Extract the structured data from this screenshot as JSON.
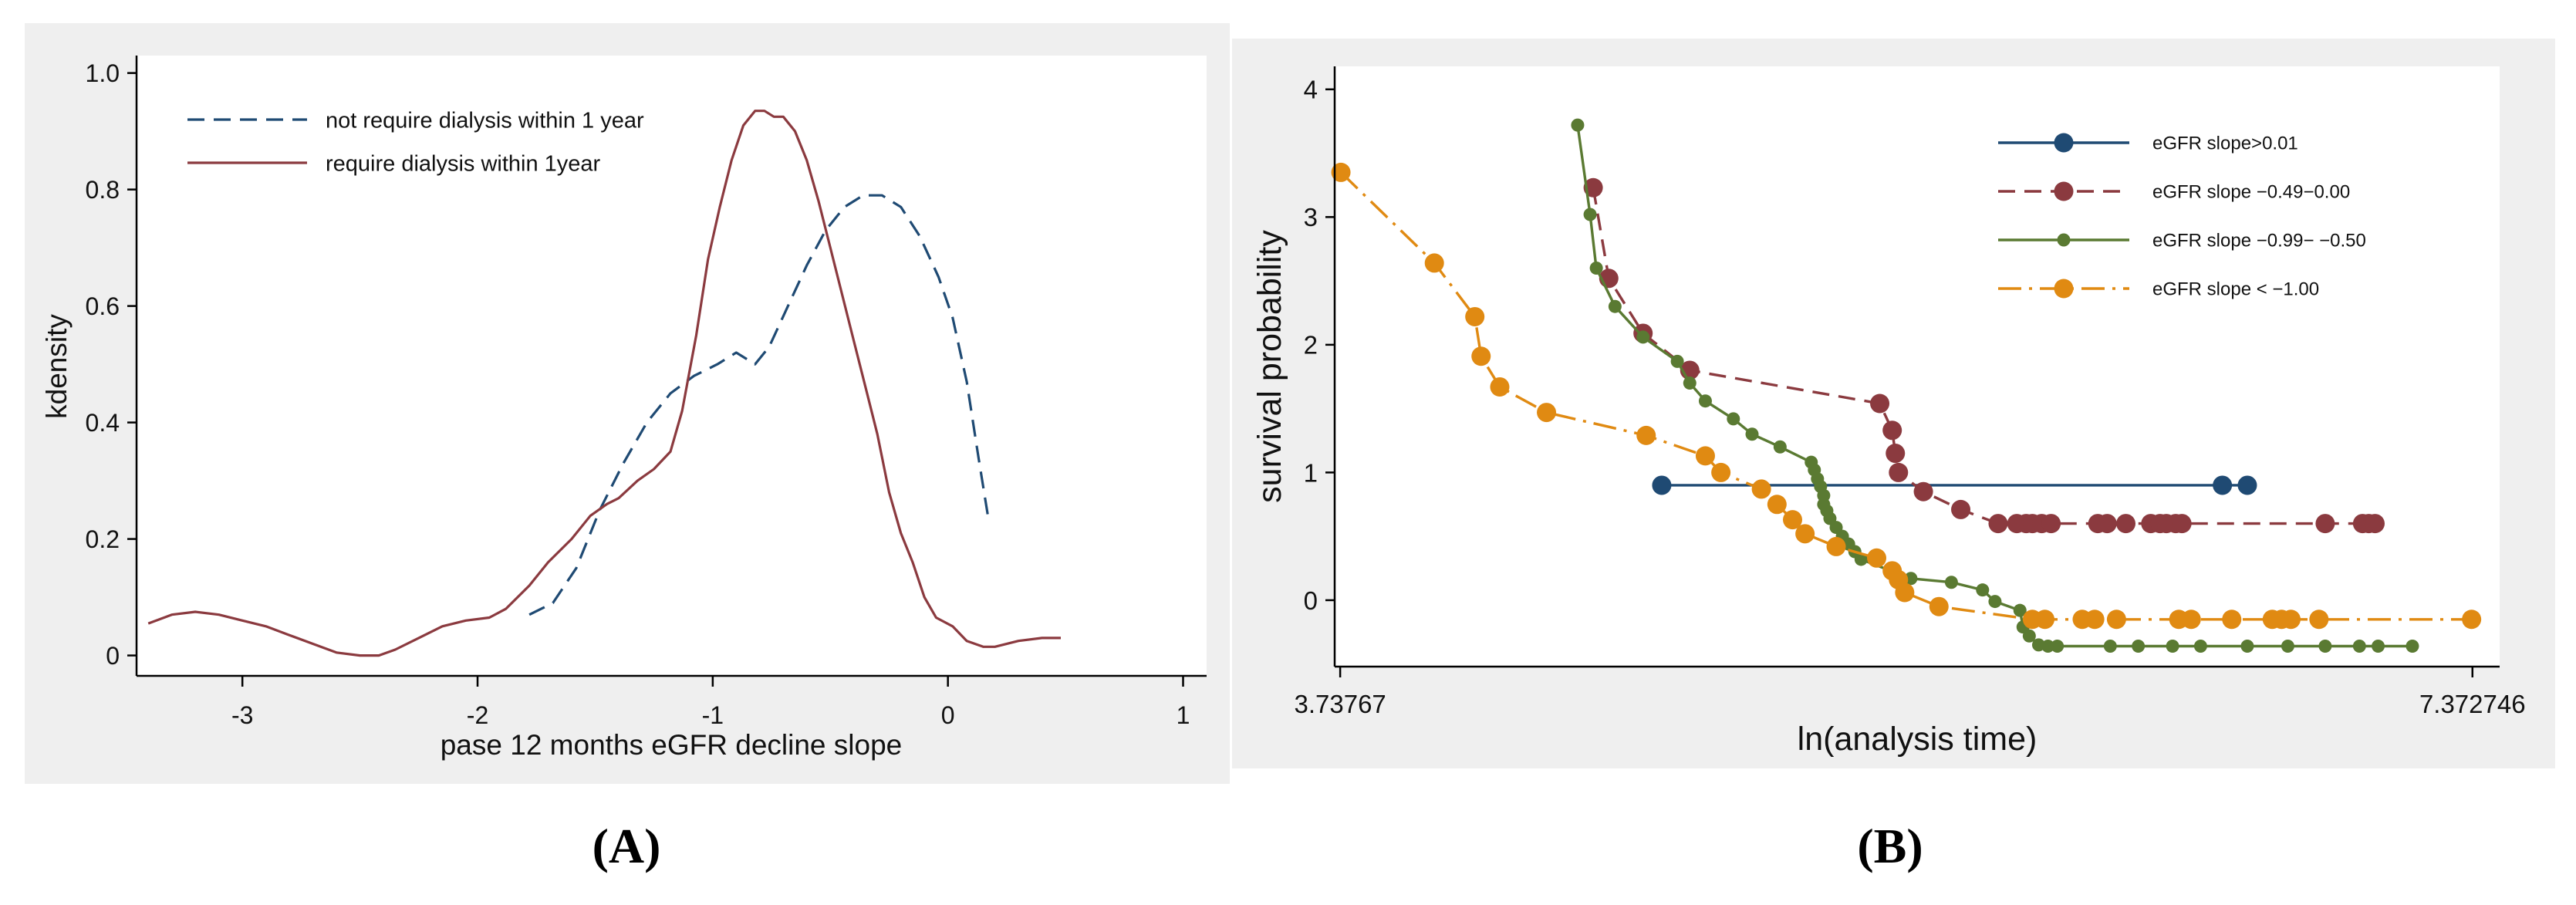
{
  "colors": {
    "navy": "#1f4a73",
    "maroon": "#8b3a3f",
    "green": "#5a7a32",
    "orange": "#e08a12",
    "panel_bg": "#efefef"
  },
  "chart_data": [
    {
      "id": "A",
      "panel_label": "(A)",
      "type": "line",
      "title": "",
      "xlabel": "pase 12 months eGFR decline slope",
      "ylabel": "kdensity",
      "xlim": [
        -3.45,
        1.1
      ],
      "ylim": [
        -0.035,
        1.03
      ],
      "x_ticks": [
        -3,
        -2,
        -1,
        0,
        1
      ],
      "x_tick_labels": [
        "-3",
        "-2",
        "-1",
        "0",
        "1"
      ],
      "y_ticks": [
        0,
        0.2,
        0.4,
        0.6,
        0.8,
        1.0
      ],
      "y_tick_labels": [
        "0",
        "0.2",
        "0.4",
        "0.6",
        "0.8",
        "1.0"
      ],
      "legend_position": "top-left",
      "series": [
        {
          "name": "not require dialysis within 1 year",
          "color": "#1f4a73",
          "dash": "dashed",
          "points": [
            [
              -1.78,
              0.07
            ],
            [
              -1.68,
              0.09
            ],
            [
              -1.58,
              0.15
            ],
            [
              -1.48,
              0.25
            ],
            [
              -1.38,
              0.33
            ],
            [
              -1.28,
              0.4
            ],
            [
              -1.18,
              0.45
            ],
            [
              -1.08,
              0.48
            ],
            [
              -0.98,
              0.5
            ],
            [
              -0.9,
              0.52
            ],
            [
              -0.82,
              0.5
            ],
            [
              -0.76,
              0.53
            ],
            [
              -0.68,
              0.6
            ],
            [
              -0.6,
              0.67
            ],
            [
              -0.52,
              0.73
            ],
            [
              -0.44,
              0.77
            ],
            [
              -0.36,
              0.79
            ],
            [
              -0.28,
              0.79
            ],
            [
              -0.2,
              0.77
            ],
            [
              -0.12,
              0.72
            ],
            [
              -0.04,
              0.65
            ],
            [
              0.02,
              0.58
            ],
            [
              0.08,
              0.47
            ],
            [
              0.13,
              0.34
            ],
            [
              0.17,
              0.24
            ]
          ]
        },
        {
          "name": "require dialysis within 1year",
          "color": "#8b3a3f",
          "dash": "solid",
          "points": [
            [
              -3.4,
              0.055
            ],
            [
              -3.3,
              0.07
            ],
            [
              -3.2,
              0.075
            ],
            [
              -3.1,
              0.07
            ],
            [
              -3.0,
              0.06
            ],
            [
              -2.9,
              0.05
            ],
            [
              -2.8,
              0.035
            ],
            [
              -2.7,
              0.02
            ],
            [
              -2.6,
              0.005
            ],
            [
              -2.5,
              0.0
            ],
            [
              -2.42,
              0.0
            ],
            [
              -2.35,
              0.01
            ],
            [
              -2.25,
              0.03
            ],
            [
              -2.15,
              0.05
            ],
            [
              -2.05,
              0.06
            ],
            [
              -1.95,
              0.065
            ],
            [
              -1.88,
              0.08
            ],
            [
              -1.78,
              0.12
            ],
            [
              -1.7,
              0.16
            ],
            [
              -1.6,
              0.2
            ],
            [
              -1.52,
              0.24
            ],
            [
              -1.45,
              0.26
            ],
            [
              -1.4,
              0.27
            ],
            [
              -1.32,
              0.3
            ],
            [
              -1.25,
              0.32
            ],
            [
              -1.18,
              0.35
            ],
            [
              -1.13,
              0.42
            ],
            [
              -1.07,
              0.55
            ],
            [
              -1.02,
              0.68
            ],
            [
              -0.97,
              0.77
            ],
            [
              -0.92,
              0.85
            ],
            [
              -0.87,
              0.91
            ],
            [
              -0.82,
              0.935
            ],
            [
              -0.78,
              0.935
            ],
            [
              -0.74,
              0.925
            ],
            [
              -0.7,
              0.925
            ],
            [
              -0.65,
              0.9
            ],
            [
              -0.6,
              0.85
            ],
            [
              -0.55,
              0.78
            ],
            [
              -0.5,
              0.7
            ],
            [
              -0.45,
              0.62
            ],
            [
              -0.4,
              0.54
            ],
            [
              -0.35,
              0.46
            ],
            [
              -0.3,
              0.38
            ],
            [
              -0.25,
              0.28
            ],
            [
              -0.2,
              0.21
            ],
            [
              -0.15,
              0.16
            ],
            [
              -0.1,
              0.1
            ],
            [
              -0.05,
              0.065
            ],
            [
              0.02,
              0.05
            ],
            [
              0.08,
              0.025
            ],
            [
              0.15,
              0.015
            ],
            [
              0.2,
              0.015
            ],
            [
              0.3,
              0.025
            ],
            [
              0.4,
              0.03
            ],
            [
              0.48,
              0.03
            ]
          ]
        }
      ]
    },
    {
      "id": "B",
      "panel_label": "(B)",
      "type": "line",
      "title": "",
      "xlabel": "ln(analysis time)",
      "ylabel": "survival probability",
      "xlim": [
        3.72,
        7.46
      ],
      "ylim": [
        -0.52,
        4.18
      ],
      "x_ticks": [
        3.73767,
        7.372746
      ],
      "x_tick_labels": [
        "3.73767",
        "7.372746"
      ],
      "y_ticks": [
        0,
        1,
        2,
        3,
        4
      ],
      "y_tick_labels": [
        "0",
        "1",
        "2",
        "3",
        "4"
      ],
      "legend_position": "top-right",
      "series": [
        {
          "name": "eGFR slope>0.01",
          "color": "#1f4a73",
          "dash": "solid",
          "marker": "large",
          "points": [
            [
              4.77,
              0.9
            ],
            [
              6.57,
              0.9
            ],
            [
              6.65,
              0.9
            ]
          ]
        },
        {
          "name": "eGFR slope −0.49−0.00",
          "color": "#8b3a3f",
          "dash": "dashed",
          "marker": "large",
          "points": [
            [
              4.55,
              3.23
            ],
            [
              4.6,
              2.52
            ],
            [
              4.71,
              2.09
            ],
            [
              4.86,
              1.8
            ],
            [
              5.47,
              1.54
            ],
            [
              5.51,
              1.33
            ],
            [
              5.52,
              1.15
            ],
            [
              5.53,
              1.0
            ],
            [
              5.61,
              0.85
            ],
            [
              5.73,
              0.71
            ],
            [
              5.85,
              0.6
            ],
            [
              5.91,
              0.6
            ],
            [
              5.94,
              0.6
            ],
            [
              5.96,
              0.6
            ],
            [
              5.99,
              0.6
            ],
            [
              6.02,
              0.6
            ],
            [
              6.17,
              0.6
            ],
            [
              6.2,
              0.6
            ],
            [
              6.26,
              0.6
            ],
            [
              6.34,
              0.6
            ],
            [
              6.37,
              0.6
            ],
            [
              6.39,
              0.6
            ],
            [
              6.42,
              0.6
            ],
            [
              6.44,
              0.6
            ],
            [
              6.9,
              0.6
            ],
            [
              7.02,
              0.6
            ],
            [
              7.04,
              0.6
            ],
            [
              7.06,
              0.6
            ]
          ]
        },
        {
          "name": "eGFR slope −0.99− −0.50",
          "color": "#5a7a32",
          "dash": "solid",
          "marker": "small",
          "points": [
            [
              4.5,
              3.72
            ],
            [
              4.54,
              3.02
            ],
            [
              4.56,
              2.6
            ],
            [
              4.62,
              2.3
            ],
            [
              4.71,
              2.06
            ],
            [
              4.82,
              1.87
            ],
            [
              4.86,
              1.7
            ],
            [
              4.91,
              1.56
            ],
            [
              5.0,
              1.42
            ],
            [
              5.06,
              1.3
            ],
            [
              5.15,
              1.2
            ],
            [
              5.25,
              1.08
            ],
            [
              5.26,
              1.02
            ],
            [
              5.27,
              0.95
            ],
            [
              5.28,
              0.89
            ],
            [
              5.29,
              0.82
            ],
            [
              5.29,
              0.75
            ],
            [
              5.3,
              0.7
            ],
            [
              5.31,
              0.64
            ],
            [
              5.33,
              0.57
            ],
            [
              5.35,
              0.5
            ],
            [
              5.37,
              0.44
            ],
            [
              5.39,
              0.38
            ],
            [
              5.41,
              0.32
            ],
            [
              5.57,
              0.17
            ],
            [
              5.7,
              0.14
            ],
            [
              5.8,
              0.08
            ],
            [
              5.84,
              -0.01
            ],
            [
              5.92,
              -0.08
            ],
            [
              5.93,
              -0.21
            ],
            [
              5.95,
              -0.28
            ],
            [
              5.98,
              -0.35
            ],
            [
              6.01,
              -0.36
            ],
            [
              6.04,
              -0.36
            ],
            [
              6.21,
              -0.36
            ],
            [
              6.3,
              -0.36
            ],
            [
              6.41,
              -0.36
            ],
            [
              6.5,
              -0.36
            ],
            [
              6.65,
              -0.36
            ],
            [
              6.78,
              -0.36
            ],
            [
              6.9,
              -0.36
            ],
            [
              7.01,
              -0.36
            ],
            [
              7.07,
              -0.36
            ],
            [
              7.18,
              -0.36
            ]
          ]
        },
        {
          "name": "eGFR slope < −1.00",
          "color": "#e08a12",
          "dash": "dashdot",
          "marker": "large",
          "points": [
            [
              3.74,
              3.35
            ],
            [
              4.04,
              2.64
            ],
            [
              4.17,
              2.22
            ],
            [
              4.19,
              1.91
            ],
            [
              4.25,
              1.67
            ],
            [
              4.4,
              1.47
            ],
            [
              4.72,
              1.29
            ],
            [
              4.91,
              1.13
            ],
            [
              4.96,
              1.0
            ],
            [
              5.09,
              0.87
            ],
            [
              5.14,
              0.75
            ],
            [
              5.19,
              0.63
            ],
            [
              5.23,
              0.52
            ],
            [
              5.33,
              0.42
            ],
            [
              5.46,
              0.33
            ],
            [
              5.51,
              0.23
            ],
            [
              5.53,
              0.16
            ],
            [
              5.55,
              0.06
            ],
            [
              5.66,
              -0.05
            ],
            [
              5.96,
              -0.15
            ],
            [
              6.0,
              -0.15
            ],
            [
              6.12,
              -0.15
            ],
            [
              6.16,
              -0.15
            ],
            [
              6.23,
              -0.15
            ],
            [
              6.43,
              -0.15
            ],
            [
              6.47,
              -0.15
            ],
            [
              6.6,
              -0.15
            ],
            [
              6.73,
              -0.15
            ],
            [
              6.76,
              -0.15
            ],
            [
              6.79,
              -0.15
            ],
            [
              6.88,
              -0.15
            ],
            [
              7.37,
              -0.15
            ]
          ]
        }
      ]
    }
  ]
}
